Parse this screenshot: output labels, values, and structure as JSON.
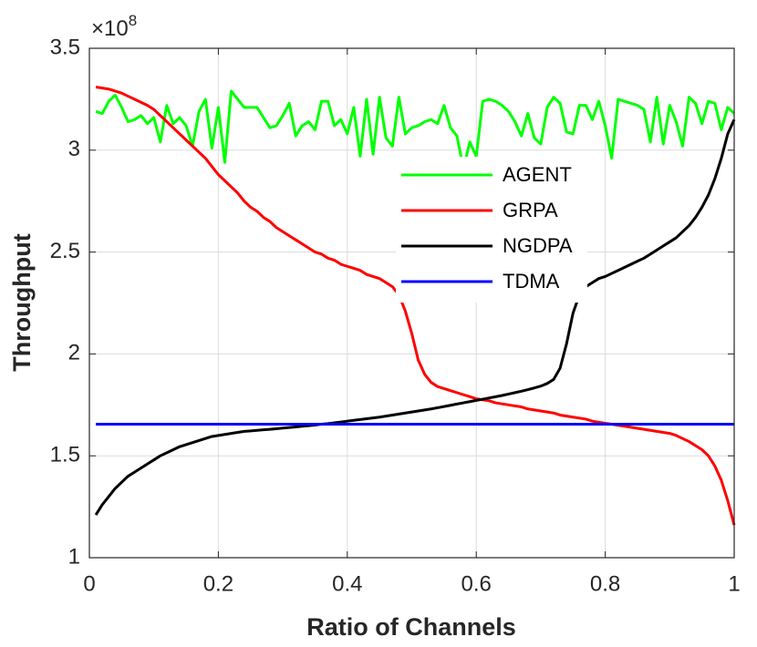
{
  "chart_data": {
    "type": "line",
    "x_label": "Ratio of Channels",
    "y_label": "Throughput",
    "y_exponent_base": "×10",
    "y_exponent": "8",
    "x": [
      0.01,
      0.02,
      0.03,
      0.04,
      0.05,
      0.06,
      0.07,
      0.08,
      0.09,
      0.1,
      0.11,
      0.12,
      0.13,
      0.14,
      0.15,
      0.16,
      0.17,
      0.18,
      0.19,
      0.2,
      0.21,
      0.22,
      0.23,
      0.24,
      0.25,
      0.26,
      0.27,
      0.28,
      0.29,
      0.3,
      0.31,
      0.32,
      0.33,
      0.34,
      0.35,
      0.36,
      0.37,
      0.38,
      0.39,
      0.4,
      0.41,
      0.42,
      0.43,
      0.44,
      0.45,
      0.46,
      0.47,
      0.48,
      0.49,
      0.5,
      0.51,
      0.52,
      0.53,
      0.54,
      0.55,
      0.56,
      0.57,
      0.58,
      0.59,
      0.6,
      0.61,
      0.62,
      0.63,
      0.64,
      0.65,
      0.66,
      0.67,
      0.68,
      0.69,
      0.7,
      0.71,
      0.72,
      0.73,
      0.74,
      0.75,
      0.76,
      0.77,
      0.78,
      0.79,
      0.8,
      0.81,
      0.82,
      0.83,
      0.84,
      0.85,
      0.86,
      0.87,
      0.88,
      0.89,
      0.9,
      0.91,
      0.92,
      0.93,
      0.94,
      0.95,
      0.96,
      0.97,
      0.98,
      0.99,
      1.0
    ],
    "series": [
      {
        "name": "AGENT",
        "color": "#00ff00",
        "values": [
          3.19,
          3.18,
          3.24,
          3.27,
          3.21,
          3.14,
          3.15,
          3.17,
          3.13,
          3.16,
          3.04,
          3.22,
          3.13,
          3.16,
          3.12,
          3.02,
          3.19,
          3.25,
          3.01,
          3.21,
          2.94,
          3.29,
          3.25,
          3.21,
          3.21,
          3.21,
          3.16,
          3.11,
          3.12,
          3.17,
          3.23,
          3.07,
          3.12,
          3.14,
          3.1,
          3.24,
          3.24,
          3.12,
          3.15,
          3.08,
          3.21,
          2.97,
          3.25,
          2.98,
          3.26,
          3.06,
          3.02,
          3.26,
          3.08,
          3.11,
          3.12,
          3.14,
          3.15,
          3.13,
          3.22,
          3.11,
          3.07,
          2.91,
          3.04,
          2.97,
          3.24,
          3.25,
          3.24,
          3.22,
          3.19,
          3.14,
          3.07,
          3.18,
          3.06,
          3.03,
          3.21,
          3.26,
          3.23,
          3.09,
          3.08,
          3.22,
          3.22,
          3.15,
          3.24,
          3.12,
          2.96,
          3.25,
          3.24,
          3.23,
          3.22,
          3.2,
          3.04,
          3.26,
          3.03,
          3.22,
          3.14,
          3.02,
          3.26,
          3.23,
          3.13,
          3.24,
          3.23,
          3.1,
          3.21,
          3.18
        ]
      },
      {
        "name": "GRPA",
        "color": "#ff0000",
        "values": [
          3.31,
          3.305,
          3.3,
          3.29,
          3.28,
          3.265,
          3.25,
          3.235,
          3.22,
          3.2,
          3.17,
          3.14,
          3.11,
          3.08,
          3.05,
          3.02,
          2.99,
          2.96,
          2.92,
          2.88,
          2.85,
          2.82,
          2.79,
          2.75,
          2.72,
          2.7,
          2.67,
          2.65,
          2.62,
          2.6,
          2.58,
          2.56,
          2.54,
          2.52,
          2.5,
          2.49,
          2.47,
          2.46,
          2.44,
          2.43,
          2.42,
          2.41,
          2.39,
          2.38,
          2.37,
          2.35,
          2.33,
          2.29,
          2.21,
          2.1,
          1.97,
          1.9,
          1.86,
          1.84,
          1.83,
          1.82,
          1.81,
          1.8,
          1.79,
          1.78,
          1.775,
          1.77,
          1.76,
          1.755,
          1.75,
          1.745,
          1.74,
          1.73,
          1.725,
          1.72,
          1.715,
          1.71,
          1.7,
          1.695,
          1.69,
          1.685,
          1.68,
          1.67,
          1.665,
          1.66,
          1.655,
          1.65,
          1.645,
          1.64,
          1.635,
          1.63,
          1.625,
          1.62,
          1.615,
          1.61,
          1.6,
          1.585,
          1.57,
          1.55,
          1.53,
          1.5,
          1.45,
          1.38,
          1.28,
          1.16
        ]
      },
      {
        "name": "NGDPA",
        "color": "#000000",
        "values": [
          1.21,
          1.26,
          1.3,
          1.34,
          1.37,
          1.4,
          1.42,
          1.44,
          1.46,
          1.48,
          1.5,
          1.515,
          1.53,
          1.545,
          1.555,
          1.565,
          1.575,
          1.585,
          1.595,
          1.6,
          1.605,
          1.61,
          1.615,
          1.62,
          1.622,
          1.625,
          1.628,
          1.63,
          1.633,
          1.636,
          1.639,
          1.642,
          1.645,
          1.648,
          1.651,
          1.655,
          1.658,
          1.662,
          1.666,
          1.67,
          1.674,
          1.678,
          1.682,
          1.686,
          1.69,
          1.695,
          1.7,
          1.705,
          1.71,
          1.715,
          1.72,
          1.725,
          1.73,
          1.736,
          1.742,
          1.748,
          1.754,
          1.76,
          1.766,
          1.772,
          1.778,
          1.784,
          1.79,
          1.796,
          1.803,
          1.81,
          1.817,
          1.825,
          1.833,
          1.842,
          1.855,
          1.875,
          1.93,
          2.05,
          2.2,
          2.29,
          2.33,
          2.35,
          2.37,
          2.38,
          2.395,
          2.41,
          2.425,
          2.44,
          2.455,
          2.47,
          2.49,
          2.51,
          2.53,
          2.55,
          2.57,
          2.6,
          2.63,
          2.67,
          2.72,
          2.78,
          2.86,
          2.96,
          3.08,
          3.15
        ]
      },
      {
        "name": "TDMA",
        "color": "#0000ff",
        "values": [
          1.655,
          1.655,
          1.655,
          1.655,
          1.655,
          1.655,
          1.655,
          1.655,
          1.655,
          1.655,
          1.655,
          1.655,
          1.655,
          1.655,
          1.655,
          1.655,
          1.655,
          1.655,
          1.655,
          1.655,
          1.655,
          1.655,
          1.655,
          1.655,
          1.655,
          1.655,
          1.655,
          1.655,
          1.655,
          1.655,
          1.655,
          1.655,
          1.655,
          1.655,
          1.655,
          1.655,
          1.655,
          1.655,
          1.655,
          1.655,
          1.655,
          1.655,
          1.655,
          1.655,
          1.655,
          1.655,
          1.655,
          1.655,
          1.655,
          1.655,
          1.655,
          1.655,
          1.655,
          1.655,
          1.655,
          1.655,
          1.655,
          1.655,
          1.655,
          1.655,
          1.655,
          1.655,
          1.655,
          1.655,
          1.655,
          1.655,
          1.655,
          1.655,
          1.655,
          1.655,
          1.655,
          1.655,
          1.655,
          1.655,
          1.655,
          1.655,
          1.655,
          1.655,
          1.655,
          1.655,
          1.655,
          1.655,
          1.655,
          1.655,
          1.655,
          1.655,
          1.655,
          1.655,
          1.655,
          1.655,
          1.655,
          1.655,
          1.655,
          1.655,
          1.655,
          1.655,
          1.655,
          1.655,
          1.655,
          1.655
        ]
      }
    ],
    "xlim": [
      0,
      1
    ],
    "ylim": [
      1,
      3.5
    ],
    "xticks": [
      0,
      0.2,
      0.4,
      0.6,
      0.8,
      1
    ],
    "yticks": [
      1,
      1.5,
      2,
      2.5,
      3,
      3.5
    ],
    "grid": true,
    "legend": "north"
  }
}
